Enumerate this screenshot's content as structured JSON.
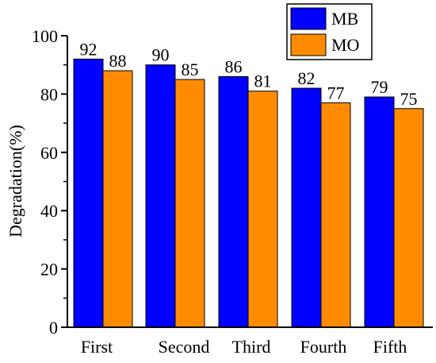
{
  "chart_data": {
    "type": "bar",
    "categories": [
      "First",
      "Second",
      "Third",
      "Fourth",
      "Fifth"
    ],
    "series": [
      {
        "name": "MB",
        "values": [
          92,
          90,
          86,
          82,
          79
        ],
        "color": "#0000FF"
      },
      {
        "name": "MO",
        "values": [
          88,
          85,
          81,
          77,
          75
        ],
        "color": "#FF8C00"
      }
    ],
    "ylabel": "Degradation(%)",
    "xlabel": "",
    "ylim": [
      0,
      100
    ],
    "yticks": [
      "0",
      "20",
      "40",
      "60",
      "80",
      "100"
    ],
    "legend_position": "top-right",
    "grid": false
  }
}
